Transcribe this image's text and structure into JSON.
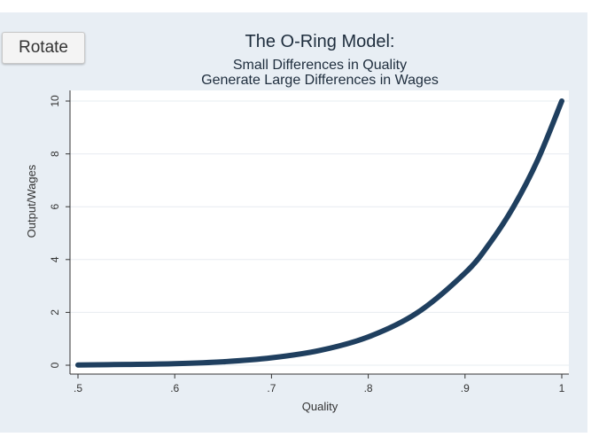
{
  "ui": {
    "rotate_label": "Rotate"
  },
  "colors": {
    "background": "#e8eef4",
    "plot_bg": "#ffffff",
    "line": "#1f3f5f",
    "grid": "#e7ecf1"
  },
  "chart_data": {
    "type": "line",
    "title": "The O-Ring Model:",
    "subtitle_lines": [
      "Small Differences in Quality",
      "Generate Large Differences in Wages"
    ],
    "xlabel": "Quality",
    "ylabel": "Output/Wages",
    "xlim": [
      0.5,
      1.0
    ],
    "ylim": [
      0,
      10
    ],
    "x_ticks": [
      0.5,
      0.6,
      0.7,
      0.8,
      0.9,
      1.0
    ],
    "x_tick_labels": [
      ".5",
      ".6",
      ".7",
      ".8",
      ".9",
      "1"
    ],
    "y_ticks": [
      0,
      2,
      4,
      6,
      8,
      10
    ],
    "y_tick_labels": [
      "0",
      "2",
      "4",
      "6",
      "8",
      "10"
    ],
    "grid": true,
    "series": [
      {
        "x": [
          0.5,
          0.55,
          0.6,
          0.65,
          0.7,
          0.75,
          0.8,
          0.85,
          0.9,
          0.925,
          0.95,
          0.975,
          1.0
        ],
        "y": [
          0.01,
          0.03,
          0.06,
          0.13,
          0.28,
          0.56,
          1.07,
          1.97,
          3.49,
          4.59,
          5.99,
          7.76,
          10.0
        ]
      }
    ]
  }
}
